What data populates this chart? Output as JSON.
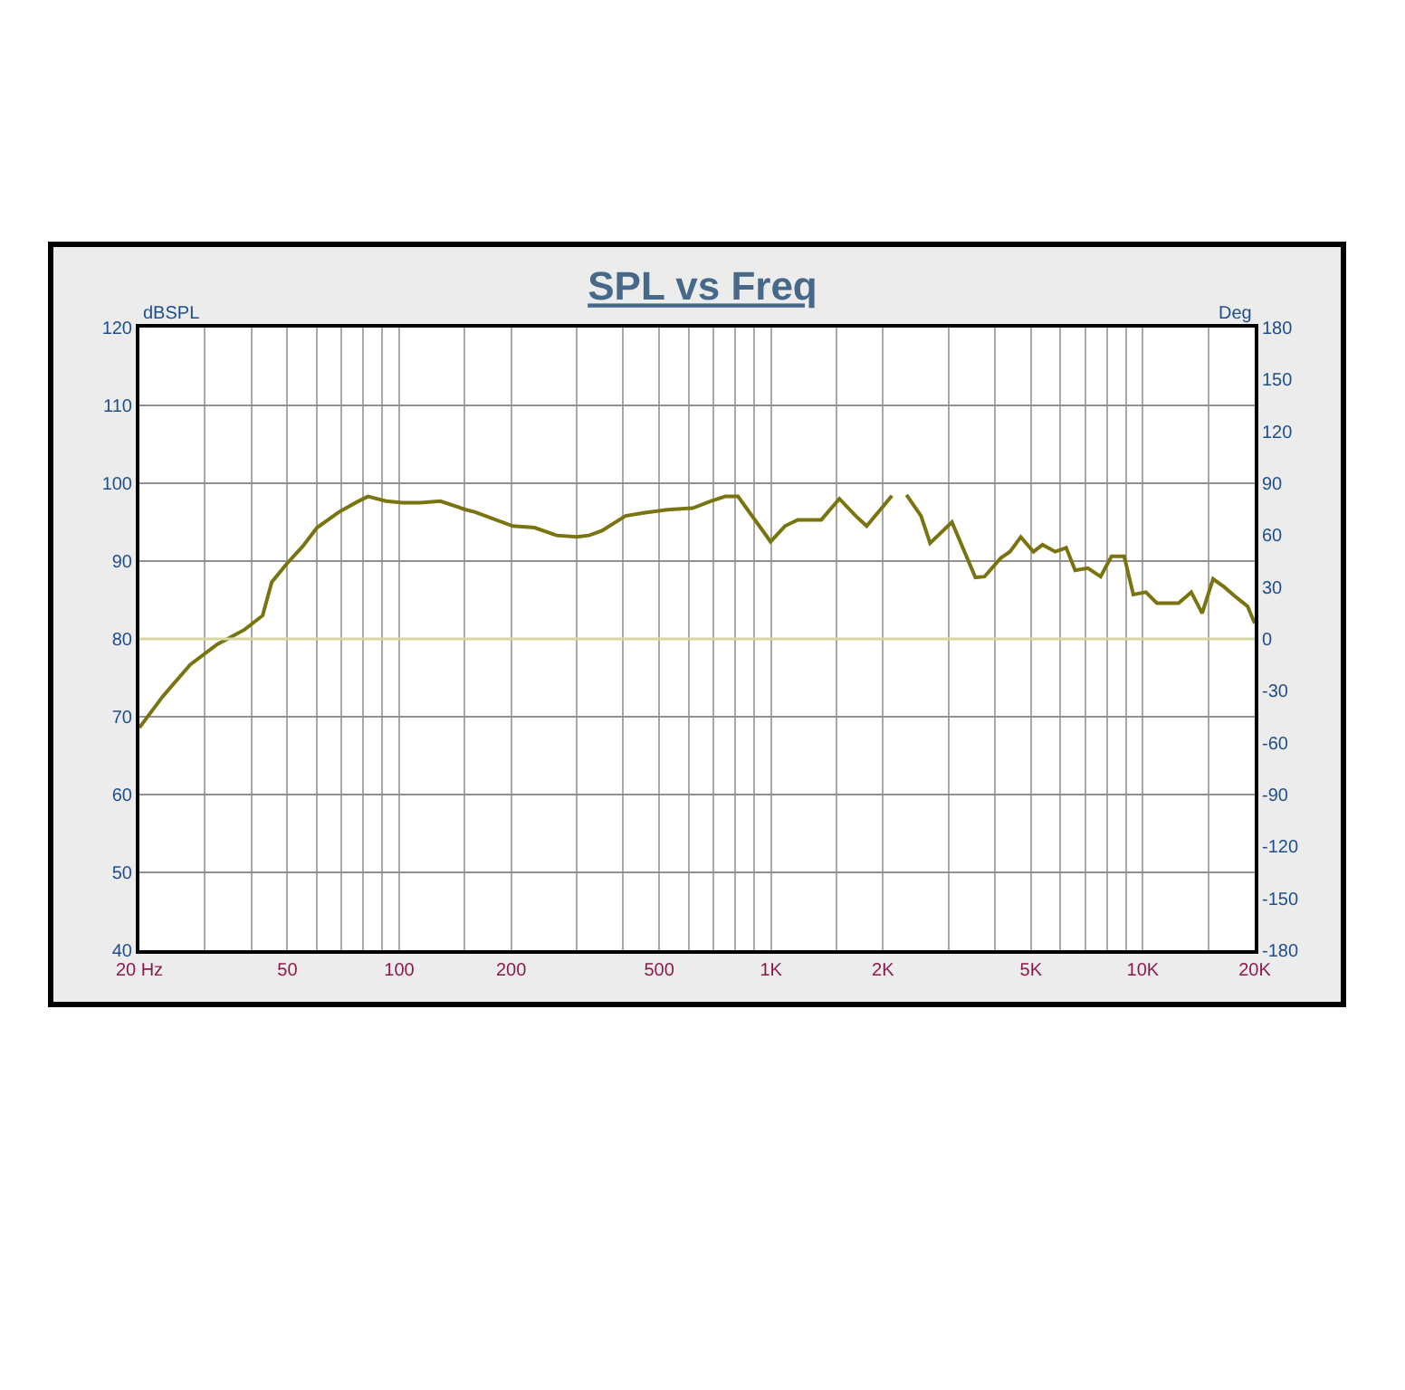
{
  "chart_data": {
    "type": "line",
    "title": "SPL vs Freq",
    "ylabel": "dBSPL",
    "y2label": "Deg",
    "x": [
      20,
      23.1,
      27.4,
      32.4,
      38.4,
      42.9,
      45.4,
      49.7,
      55,
      60.1,
      68.8,
      77,
      82.4,
      92.1,
      102,
      114,
      129,
      151,
      160,
      202,
      231,
      265,
      300,
      324,
      351,
      406,
      454,
      526,
      615,
      688,
      753,
      815,
      997,
      1090,
      1180,
      1365,
      1527,
      1690,
      1808,
      2115,
      2200,
      2314,
      2532,
      2678,
      3066,
      3546,
      3751,
      4150,
      4391,
      4697,
      5081,
      5374,
      5814,
      6220,
      6577,
      7115,
      7700,
      8236,
      8910,
      9427,
      10194,
      10908,
      12480,
      13500,
      14440,
      15450,
      16530,
      17880,
      19130,
      20000
    ],
    "series": [
      {
        "color": "#7a7410",
        "values": [
          68.6,
          72.6,
          76.7,
          79.3,
          81.2,
          83,
          87.3,
          89.6,
          91.9,
          94.3,
          96.3,
          97.6,
          98.3,
          97.7,
          97.5,
          97.5,
          97.7,
          96.6,
          96.3,
          94.5,
          94.3,
          93.3,
          93.1,
          93.3,
          93.9,
          95.8,
          96.2,
          96.6,
          96.8,
          97.7,
          98.3,
          98.3,
          92.5,
          94.5,
          95.3,
          95.3,
          98,
          95.8,
          94.5,
          98.4,
          null,
          98.5,
          95.8,
          92.3,
          95,
          87.9,
          88,
          90.4,
          91.2,
          93.1,
          91.2,
          92.1,
          91.2,
          91.7,
          88.8,
          89.1,
          88,
          90.6,
          90.6,
          85.7,
          86,
          84.6,
          84.6,
          86,
          83.3,
          87.7,
          86.7,
          85.3,
          84.2,
          82
        ]
      }
    ],
    "log": "x",
    "xlim": [
      20,
      20000
    ],
    "ylim": [
      40,
      120
    ],
    "y2lim": [
      -180,
      180
    ],
    "xticks": [
      {
        "value": 20,
        "label": "20 Hz"
      },
      {
        "value": 30,
        "label": null
      },
      {
        "value": 40,
        "label": null
      },
      50,
      {
        "value": 60,
        "label": null
      },
      {
        "value": 70,
        "label": null
      },
      {
        "value": 80,
        "label": null
      },
      {
        "value": 90,
        "label": null
      },
      100,
      {
        "value": 150,
        "label": null
      },
      200,
      {
        "value": 300,
        "label": null
      },
      {
        "value": 400,
        "label": null
      },
      500,
      {
        "value": 600,
        "label": null
      },
      {
        "value": 700,
        "label": null
      },
      {
        "value": 800,
        "label": null
      },
      {
        "value": 900,
        "label": null
      },
      {
        "value": 1000,
        "label": "1K"
      },
      {
        "value": 1500,
        "label": null
      },
      {
        "value": 2000,
        "label": "2K"
      },
      {
        "value": 3000,
        "label": null
      },
      {
        "value": 4000,
        "label": null
      },
      {
        "value": 5000,
        "label": "5K"
      },
      {
        "value": 6000,
        "label": null
      },
      {
        "value": 7000,
        "label": null
      },
      {
        "value": 8000,
        "label": null
      },
      {
        "value": 9000,
        "label": null
      },
      {
        "value": 10000,
        "label": "10K"
      },
      {
        "value": 15000,
        "label": null
      },
      {
        "value": 20000,
        "label": "20K"
      }
    ],
    "yticks": [
      40,
      50,
      60,
      70,
      80,
      90,
      100,
      110,
      120
    ],
    "y2ticks": [
      -180,
      -150,
      -120,
      -90,
      -60,
      -30,
      0,
      30,
      60,
      90,
      120,
      150,
      180
    ],
    "ref_lines": [
      {
        "axis": "y",
        "value": 80,
        "color": "#d6d6a0"
      }
    ],
    "grid": true,
    "marker": "none",
    "line_style": "solid"
  }
}
